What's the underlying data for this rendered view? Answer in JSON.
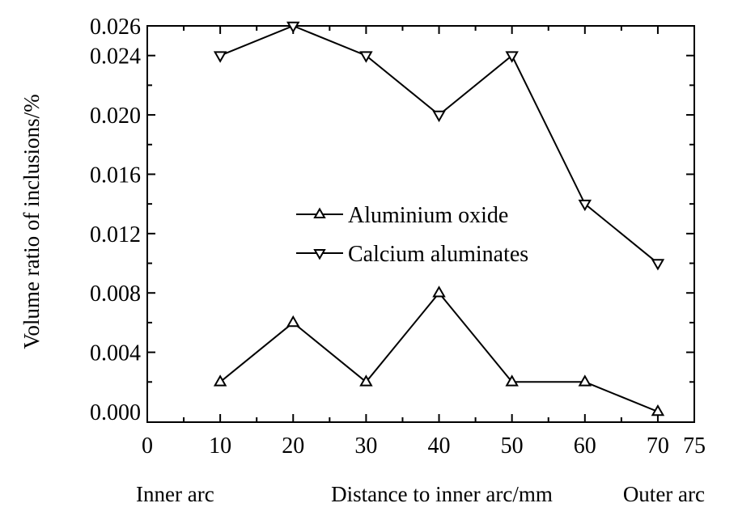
{
  "chart_data": {
    "type": "line",
    "title": "",
    "xlabel": "Distance to inner arc/mm",
    "ylabel": "Volume ratio of inclusions/%",
    "x_end_labels": {
      "left": "Inner arc",
      "right": "Outer arc"
    },
    "xlim": [
      0,
      75
    ],
    "ylim": [
      0.0,
      0.026
    ],
    "x_ticks": [
      0,
      10,
      20,
      30,
      40,
      50,
      60,
      70,
      75
    ],
    "x_tick_labels": [
      "0",
      "10",
      "20",
      "30",
      "40",
      "50",
      "60",
      "70",
      "75"
    ],
    "y_ticks": [
      0.0,
      0.004,
      0.008,
      0.012,
      0.016,
      0.02,
      0.024,
      0.026
    ],
    "y_tick_labels": [
      "0.000",
      "0.004",
      "0.008",
      "0.012",
      "0.016",
      "0.020",
      "0.024",
      "0.026"
    ],
    "grid": false,
    "legend_position": "center",
    "x": [
      10,
      20,
      30,
      40,
      50,
      60,
      70
    ],
    "series": [
      {
        "name": "Aluminium oxide",
        "marker": "triangle-up",
        "values": [
          0.002,
          0.006,
          0.002,
          0.008,
          0.002,
          0.002,
          0.0
        ]
      },
      {
        "name": "Calcium aluminates",
        "marker": "triangle-down",
        "values": [
          0.024,
          0.026,
          0.024,
          0.02,
          0.024,
          0.014,
          0.01
        ]
      }
    ],
    "colors": {
      "line": "#000000",
      "background": "#ffffff"
    }
  }
}
